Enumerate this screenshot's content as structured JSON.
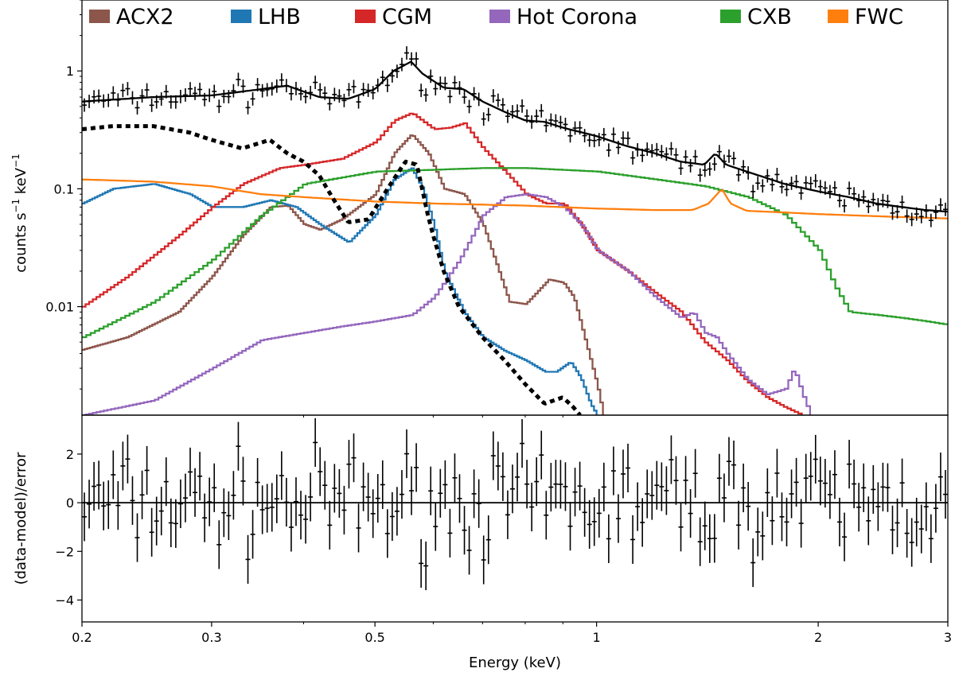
{
  "chart_data": [
    {
      "panel": "spectrum",
      "type": "line",
      "xscale": "log",
      "yscale": "log",
      "xlim": [
        0.2,
        3
      ],
      "ylim": [
        0.0012,
        4
      ],
      "ylabel": {
        "base": "counts s",
        "exp1": "−1",
        "mid": " keV",
        "exp2": "−1"
      },
      "yticks": [
        {
          "value": 0.01,
          "label": "0.01"
        },
        {
          "value": 0.1,
          "label": "0.1"
        },
        {
          "value": 1,
          "label": "1"
        }
      ],
      "legend": {
        "placement": "top",
        "entries": [
          {
            "name": "ACX2",
            "color": "#8c564b"
          },
          {
            "name": "LHB",
            "color": "#1f77b4"
          },
          {
            "name": "CGM",
            "color": "#d62728"
          },
          {
            "name": "Hot Corona",
            "color": "#9467bd"
          },
          {
            "name": "CXB",
            "color": "#2ca02c"
          },
          {
            "name": "FWC",
            "color": "#ff7f0e"
          }
        ]
      },
      "series": [
        {
          "name": "ACX2",
          "color": "#8c564b",
          "style": "step",
          "points": [
            [
              0.2,
              0.0043
            ],
            [
              0.23,
              0.0055
            ],
            [
              0.27,
              0.009
            ],
            [
              0.3,
              0.018
            ],
            [
              0.33,
              0.04
            ],
            [
              0.36,
              0.07
            ],
            [
              0.38,
              0.072
            ],
            [
              0.4,
              0.05
            ],
            [
              0.42,
              0.045
            ],
            [
              0.45,
              0.055
            ],
            [
              0.5,
              0.09
            ],
            [
              0.53,
              0.2
            ],
            [
              0.56,
              0.29
            ],
            [
              0.59,
              0.2
            ],
            [
              0.62,
              0.1
            ],
            [
              0.66,
              0.09
            ],
            [
              0.7,
              0.05
            ],
            [
              0.76,
              0.011
            ],
            [
              0.8,
              0.0105
            ],
            [
              0.86,
              0.017
            ],
            [
              0.9,
              0.016
            ],
            [
              0.93,
              0.012
            ],
            [
              0.97,
              0.0045
            ],
            [
              1.0,
              0.0022
            ],
            [
              1.02,
              0.0012
            ]
          ]
        },
        {
          "name": "LHB",
          "color": "#1f77b4",
          "style": "step",
          "points": [
            [
              0.2,
              0.075
            ],
            [
              0.22,
              0.1
            ],
            [
              0.25,
              0.11
            ],
            [
              0.28,
              0.09
            ],
            [
              0.3,
              0.07
            ],
            [
              0.33,
              0.07
            ],
            [
              0.36,
              0.08
            ],
            [
              0.39,
              0.07
            ],
            [
              0.42,
              0.05
            ],
            [
              0.46,
              0.035
            ],
            [
              0.5,
              0.06
            ],
            [
              0.53,
              0.12
            ],
            [
              0.56,
              0.15
            ],
            [
              0.58,
              0.1
            ],
            [
              0.6,
              0.05
            ],
            [
              0.62,
              0.02
            ],
            [
              0.66,
              0.009
            ],
            [
              0.7,
              0.0055
            ],
            [
              0.75,
              0.0042
            ],
            [
              0.8,
              0.0035
            ],
            [
              0.85,
              0.0028
            ],
            [
              0.88,
              0.0028
            ],
            [
              0.92,
              0.0034
            ],
            [
              0.95,
              0.0025
            ],
            [
              0.98,
              0.0015
            ],
            [
              1.0,
              0.0012
            ]
          ]
        },
        {
          "name": "CGM",
          "color": "#d62728",
          "style": "step",
          "points": [
            [
              0.2,
              0.01
            ],
            [
              0.23,
              0.018
            ],
            [
              0.27,
              0.04
            ],
            [
              0.3,
              0.07
            ],
            [
              0.33,
              0.11
            ],
            [
              0.37,
              0.15
            ],
            [
              0.4,
              0.16
            ],
            [
              0.45,
              0.18
            ],
            [
              0.5,
              0.25
            ],
            [
              0.53,
              0.38
            ],
            [
              0.56,
              0.44
            ],
            [
              0.6,
              0.32
            ],
            [
              0.63,
              0.33
            ],
            [
              0.66,
              0.36
            ],
            [
              0.7,
              0.22
            ],
            [
              0.75,
              0.14
            ],
            [
              0.8,
              0.09
            ],
            [
              0.85,
              0.075
            ],
            [
              0.9,
              0.075
            ],
            [
              0.95,
              0.05
            ],
            [
              1.0,
              0.03
            ],
            [
              1.1,
              0.02
            ],
            [
              1.2,
              0.013
            ],
            [
              1.3,
              0.009
            ],
            [
              1.4,
              0.005
            ],
            [
              1.5,
              0.0035
            ],
            [
              1.6,
              0.0023
            ],
            [
              1.7,
              0.0017
            ],
            [
              1.8,
              0.0014
            ],
            [
              1.9,
              0.0012
            ]
          ]
        },
        {
          "name": "Hot Corona",
          "color": "#9467bd",
          "style": "step",
          "points": [
            [
              0.2,
              0.0012
            ],
            [
              0.25,
              0.0016
            ],
            [
              0.3,
              0.003
            ],
            [
              0.35,
              0.0052
            ],
            [
              0.4,
              0.006
            ],
            [
              0.45,
              0.0068
            ],
            [
              0.5,
              0.0075
            ],
            [
              0.56,
              0.0085
            ],
            [
              0.6,
              0.012
            ],
            [
              0.65,
              0.025
            ],
            [
              0.7,
              0.06
            ],
            [
              0.75,
              0.085
            ],
            [
              0.8,
              0.09
            ],
            [
              0.85,
              0.085
            ],
            [
              0.9,
              0.07
            ],
            [
              0.95,
              0.05
            ],
            [
              1.0,
              0.03
            ],
            [
              1.1,
              0.02
            ],
            [
              1.2,
              0.012
            ],
            [
              1.3,
              0.008
            ],
            [
              1.35,
              0.009
            ],
            [
              1.4,
              0.006
            ],
            [
              1.45,
              0.0055
            ],
            [
              1.5,
              0.004
            ],
            [
              1.6,
              0.0024
            ],
            [
              1.7,
              0.0018
            ],
            [
              1.8,
              0.002
            ],
            [
              1.85,
              0.003
            ],
            [
              1.9,
              0.0018
            ],
            [
              1.95,
              0.0012
            ]
          ]
        },
        {
          "name": "CXB",
          "color": "#2ca02c",
          "style": "step",
          "points": [
            [
              0.2,
              0.0055
            ],
            [
              0.25,
              0.011
            ],
            [
              0.3,
              0.025
            ],
            [
              0.35,
              0.06
            ],
            [
              0.4,
              0.11
            ],
            [
              0.5,
              0.14
            ],
            [
              0.6,
              0.145
            ],
            [
              0.7,
              0.15
            ],
            [
              0.8,
              0.15
            ],
            [
              1.0,
              0.14
            ],
            [
              1.2,
              0.12
            ],
            [
              1.4,
              0.105
            ],
            [
              1.6,
              0.085
            ],
            [
              1.8,
              0.06
            ],
            [
              2.0,
              0.03
            ],
            [
              2.1,
              0.015
            ],
            [
              2.2,
              0.009
            ],
            [
              2.4,
              0.0085
            ],
            [
              2.6,
              0.008
            ],
            [
              2.8,
              0.0075
            ],
            [
              3.0,
              0.007
            ]
          ]
        },
        {
          "name": "FWC",
          "color": "#ff7f0e",
          "style": "line",
          "points": [
            [
              0.2,
              0.12
            ],
            [
              0.25,
              0.115
            ],
            [
              0.3,
              0.105
            ],
            [
              0.35,
              0.09
            ],
            [
              0.4,
              0.085
            ],
            [
              0.5,
              0.078
            ],
            [
              0.6,
              0.075
            ],
            [
              0.8,
              0.072
            ],
            [
              1.0,
              0.068
            ],
            [
              1.2,
              0.066
            ],
            [
              1.35,
              0.066
            ],
            [
              1.42,
              0.075
            ],
            [
              1.48,
              0.1
            ],
            [
              1.52,
              0.075
            ],
            [
              1.6,
              0.065
            ],
            [
              1.8,
              0.063
            ],
            [
              2.0,
              0.061
            ],
            [
              2.5,
              0.058
            ],
            [
              3.0,
              0.056
            ]
          ]
        },
        {
          "name": "Total model",
          "color": "#000000",
          "style": "line",
          "points": [
            [
              0.2,
              0.55
            ],
            [
              0.25,
              0.6
            ],
            [
              0.3,
              0.62
            ],
            [
              0.35,
              0.7
            ],
            [
              0.38,
              0.75
            ],
            [
              0.42,
              0.6
            ],
            [
              0.46,
              0.58
            ],
            [
              0.5,
              0.7
            ],
            [
              0.53,
              1.0
            ],
            [
              0.56,
              1.2
            ],
            [
              0.58,
              0.95
            ],
            [
              0.62,
              0.72
            ],
            [
              0.66,
              0.7
            ],
            [
              0.7,
              0.55
            ],
            [
              0.75,
              0.45
            ],
            [
              0.8,
              0.38
            ],
            [
              0.85,
              0.37
            ],
            [
              0.9,
              0.33
            ],
            [
              1.0,
              0.28
            ],
            [
              1.1,
              0.23
            ],
            [
              1.2,
              0.2
            ],
            [
              1.3,
              0.17
            ],
            [
              1.4,
              0.16
            ],
            [
              1.45,
              0.2
            ],
            [
              1.5,
              0.16
            ],
            [
              1.6,
              0.14
            ],
            [
              1.8,
              0.11
            ],
            [
              2.0,
              0.095
            ],
            [
              2.2,
              0.085
            ],
            [
              2.4,
              0.075
            ],
            [
              2.6,
              0.07
            ],
            [
              2.8,
              0.066
            ],
            [
              3.0,
              0.064
            ]
          ]
        },
        {
          "name": "Dotted component",
          "color": "#000000",
          "style": "dotted",
          "points": [
            [
              0.2,
              0.32
            ],
            [
              0.22,
              0.34
            ],
            [
              0.25,
              0.34
            ],
            [
              0.28,
              0.3
            ],
            [
              0.3,
              0.26
            ],
            [
              0.33,
              0.22
            ],
            [
              0.36,
              0.26
            ],
            [
              0.38,
              0.2
            ],
            [
              0.4,
              0.17
            ],
            [
              0.42,
              0.13
            ],
            [
              0.44,
              0.08
            ],
            [
              0.46,
              0.052
            ],
            [
              0.49,
              0.055
            ],
            [
              0.52,
              0.1
            ],
            [
              0.55,
              0.17
            ],
            [
              0.57,
              0.16
            ],
            [
              0.59,
              0.06
            ],
            [
              0.6,
              0.04
            ],
            [
              0.62,
              0.02
            ],
            [
              0.65,
              0.01
            ],
            [
              0.7,
              0.0055
            ],
            [
              0.75,
              0.0035
            ],
            [
              0.8,
              0.0022
            ],
            [
              0.85,
              0.0015
            ],
            [
              0.9,
              0.0017
            ],
            [
              0.93,
              0.0014
            ],
            [
              0.95,
              0.0012
            ]
          ]
        }
      ]
    },
    {
      "panel": "residuals",
      "type": "scatter",
      "xscale": "log",
      "xlim": [
        0.2,
        3
      ],
      "ylim": [
        -4.9,
        3.6
      ],
      "xlabel": "Energy (keV)",
      "ylabel": "(data-model)/error",
      "xticks": [
        {
          "value": 0.2,
          "label": "0.2"
        },
        {
          "value": 0.3,
          "label": "0.3"
        },
        {
          "value": 0.5,
          "label": "0.5"
        },
        {
          "value": 1,
          "label": "1"
        },
        {
          "value": 2,
          "label": "2"
        },
        {
          "value": 3,
          "label": "3"
        }
      ],
      "yticks": [
        {
          "value": 2,
          "label": "2"
        },
        {
          "value": 0,
          "label": "0"
        },
        {
          "value": -2,
          "label": "−2"
        },
        {
          "value": -4,
          "label": "−4"
        }
      ],
      "zero_line": 0,
      "n_points": 180,
      "error": 1,
      "marker_color": "#000000"
    }
  ]
}
